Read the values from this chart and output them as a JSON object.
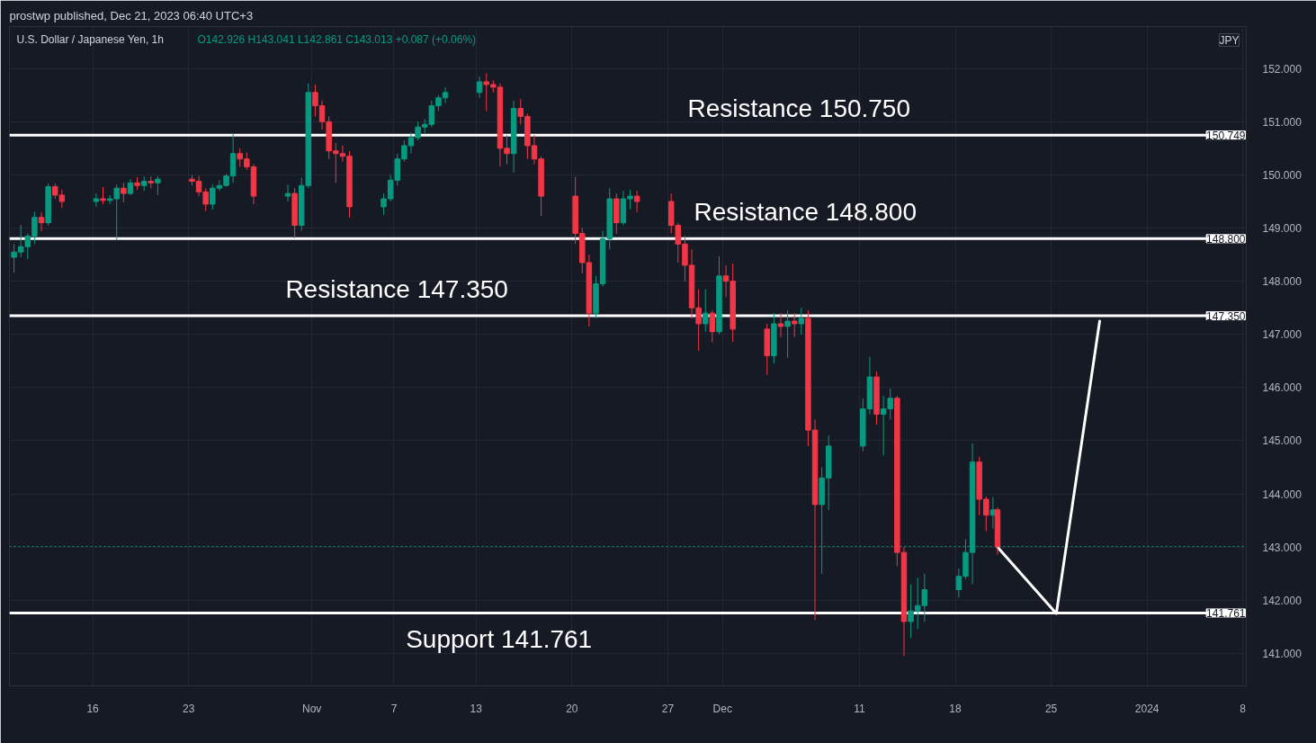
{
  "chart_data": {
    "type": "candlestick",
    "title": "prostwp published, Dec 21, 2023 06:40 UTC+3",
    "subtitle": "U.S. Dollar / Japanese Yen, 1h",
    "x": [
      "2023-10-10T06:00",
      "2023-10-10T18:00",
      "2023-10-11T06:00",
      "2023-10-11T18:00",
      "2023-10-12T06:00",
      "2023-10-12T18:00",
      "2023-10-13T06:00",
      "2023-10-13T18:00",
      "2023-10-16T06:00",
      "2023-10-16T18:00",
      "2023-10-17T06:00",
      "2023-10-17T18:00",
      "2023-10-18T06:00",
      "2023-10-18T18:00",
      "2023-10-19T06:00",
      "2023-10-19T18:00",
      "2023-10-20T06:00",
      "2023-10-20T18:00",
      "2023-10-23T06:00",
      "2023-10-23T18:00",
      "2023-10-24T06:00",
      "2023-10-24T18:00",
      "2023-10-25T06:00",
      "2023-10-25T18:00",
      "2023-10-26T06:00",
      "2023-10-26T18:00",
      "2023-10-27T06:00",
      "2023-10-27T18:00",
      "2023-10-30T06:00",
      "2023-10-30T18:00",
      "2023-10-31T06:00",
      "2023-10-31T18:00",
      "2023-11-01T06:00",
      "2023-11-01T18:00",
      "2023-11-02T06:00",
      "2023-11-02T18:00",
      "2023-11-03T06:00",
      "2023-11-03T18:00",
      "2023-11-06T06:00",
      "2023-11-06T18:00",
      "2023-11-07T06:00",
      "2023-11-07T18:00",
      "2023-11-08T06:00",
      "2023-11-08T18:00",
      "2023-11-09T06:00",
      "2023-11-09T18:00",
      "2023-11-10T06:00",
      "2023-11-10T18:00",
      "2023-11-13T06:00",
      "2023-11-13T18:00",
      "2023-11-14T06:00",
      "2023-11-14T18:00",
      "2023-11-15T06:00",
      "2023-11-15T18:00",
      "2023-11-16T06:00",
      "2023-11-16T18:00",
      "2023-11-17T06:00",
      "2023-11-17T18:00",
      "2023-11-20T06:00",
      "2023-11-20T18:00",
      "2023-11-21T06:00",
      "2023-11-21T18:00",
      "2023-11-22T06:00",
      "2023-11-22T18:00",
      "2023-11-23T06:00",
      "2023-11-23T18:00",
      "2023-11-24T06:00",
      "2023-11-24T18:00",
      "2023-11-27T06:00",
      "2023-11-27T18:00",
      "2023-11-28T06:00",
      "2023-11-28T18:00",
      "2023-11-29T06:00",
      "2023-11-29T18:00",
      "2023-11-30T06:00",
      "2023-11-30T18:00",
      "2023-12-01T06:00",
      "2023-12-01T18:00",
      "2023-12-04T06:00",
      "2023-12-04T18:00",
      "2023-12-05T06:00",
      "2023-12-05T18:00",
      "2023-12-06T06:00",
      "2023-12-06T18:00",
      "2023-12-07T06:00",
      "2023-12-07T18:00",
      "2023-12-08T06:00",
      "2023-12-08T18:00",
      "2023-12-11T06:00",
      "2023-12-11T18:00",
      "2023-12-12T06:00",
      "2023-12-12T18:00",
      "2023-12-13T06:00",
      "2023-12-13T18:00",
      "2023-12-14T06:00",
      "2023-12-14T18:00",
      "2023-12-15T06:00",
      "2023-12-15T18:00",
      "2023-12-18T06:00",
      "2023-12-18T18:00",
      "2023-12-19T06:00",
      "2023-12-19T18:00",
      "2023-12-20T06:00",
      "2023-12-20T18:00",
      "2023-12-21T02:00"
    ],
    "ohlc": [
      [
        148.45,
        148.7,
        148.16,
        148.55
      ],
      [
        148.55,
        149.06,
        148.45,
        148.65
      ],
      [
        148.65,
        148.9,
        148.42,
        148.85
      ],
      [
        148.85,
        149.31,
        148.7,
        149.2
      ],
      [
        149.2,
        149.3,
        148.94,
        149.1
      ],
      [
        149.1,
        149.84,
        149.05,
        149.78
      ],
      [
        149.78,
        149.84,
        149.55,
        149.62
      ],
      [
        149.62,
        149.72,
        149.38,
        149.5
      ],
      [
        149.5,
        149.65,
        149.4,
        149.55
      ],
      [
        149.55,
        149.77,
        149.45,
        149.52
      ],
      [
        149.52,
        149.62,
        149.45,
        149.55
      ],
      [
        149.55,
        149.82,
        148.77,
        149.75
      ],
      [
        149.75,
        149.85,
        149.48,
        149.65
      ],
      [
        149.65,
        149.92,
        149.62,
        149.85
      ],
      [
        149.85,
        149.96,
        149.72,
        149.8
      ],
      [
        149.8,
        149.97,
        149.7,
        149.88
      ],
      [
        149.88,
        149.97,
        149.75,
        149.85
      ],
      [
        149.85,
        149.98,
        149.62,
        149.92
      ],
      [
        149.92,
        150.0,
        149.8,
        149.88
      ],
      [
        149.88,
        149.98,
        149.6,
        149.68
      ],
      [
        149.68,
        149.75,
        149.32,
        149.45
      ],
      [
        149.45,
        149.82,
        149.35,
        149.75
      ],
      [
        149.75,
        149.9,
        149.7,
        149.8
      ],
      [
        149.8,
        150.02,
        149.78,
        149.98
      ],
      [
        149.98,
        150.77,
        149.85,
        150.4
      ],
      [
        150.4,
        150.5,
        150.15,
        150.3
      ],
      [
        150.3,
        150.42,
        150.1,
        150.15
      ],
      [
        150.15,
        150.2,
        149.45,
        149.6
      ],
      [
        149.6,
        149.82,
        149.5,
        149.65
      ],
      [
        149.65,
        149.75,
        148.81,
        149.05
      ],
      [
        149.05,
        149.95,
        148.95,
        149.8
      ],
      [
        149.8,
        151.72,
        149.75,
        151.55
      ],
      [
        151.55,
        151.7,
        151.1,
        151.3
      ],
      [
        151.3,
        151.4,
        150.85,
        151.0
      ],
      [
        151.0,
        151.1,
        150.3,
        150.45
      ],
      [
        150.45,
        150.6,
        149.85,
        150.4
      ],
      [
        150.4,
        150.55,
        150.25,
        150.35
      ],
      [
        150.35,
        150.45,
        149.2,
        149.4
      ],
      [
        149.4,
        149.65,
        149.25,
        149.55
      ],
      [
        149.55,
        150.0,
        149.5,
        149.9
      ],
      [
        149.9,
        150.4,
        149.8,
        150.3
      ],
      [
        150.3,
        150.65,
        150.25,
        150.55
      ],
      [
        150.55,
        150.8,
        150.4,
        150.7
      ],
      [
        150.7,
        151.0,
        150.65,
        150.9
      ],
      [
        150.9,
        151.05,
        150.78,
        150.95
      ],
      [
        150.95,
        151.4,
        150.9,
        151.3
      ],
      [
        151.3,
        151.5,
        151.2,
        151.45
      ],
      [
        151.45,
        151.65,
        151.35,
        151.55
      ],
      [
        151.55,
        151.85,
        151.45,
        151.75
      ],
      [
        151.75,
        151.91,
        151.2,
        151.7
      ],
      [
        151.7,
        151.78,
        151.55,
        151.65
      ],
      [
        151.65,
        151.72,
        150.16,
        150.5
      ],
      [
        150.5,
        150.75,
        150.2,
        150.4
      ],
      [
        150.4,
        151.4,
        150.04,
        151.25
      ],
      [
        151.25,
        151.43,
        150.95,
        151.1
      ],
      [
        151.1,
        151.15,
        150.3,
        150.55
      ],
      [
        150.55,
        150.75,
        150.2,
        150.3
      ],
      [
        150.3,
        150.35,
        149.23,
        149.6
      ],
      [
        149.6,
        149.96,
        148.7,
        148.9
      ],
      [
        148.9,
        149.0,
        148.15,
        148.35
      ],
      [
        148.35,
        148.5,
        147.15,
        147.4
      ],
      [
        147.4,
        148.1,
        147.3,
        147.95
      ],
      [
        147.95,
        148.95,
        147.9,
        148.8
      ],
      [
        148.8,
        149.75,
        148.6,
        149.55
      ],
      [
        149.55,
        149.65,
        148.89,
        149.1
      ],
      [
        149.1,
        149.7,
        149.05,
        149.55
      ],
      [
        149.55,
        149.72,
        149.35,
        149.6
      ],
      [
        149.6,
        149.7,
        149.3,
        149.5
      ],
      [
        149.5,
        149.65,
        148.9,
        149.05
      ],
      [
        149.05,
        149.1,
        148.35,
        148.7
      ],
      [
        148.7,
        148.85,
        148.0,
        148.3
      ],
      [
        148.3,
        148.6,
        147.3,
        147.5
      ],
      [
        147.5,
        147.85,
        146.69,
        147.2
      ],
      [
        147.2,
        147.85,
        147.05,
        147.4
      ],
      [
        147.4,
        147.45,
        146.85,
        147.05
      ],
      [
        147.05,
        148.47,
        147.0,
        148.1
      ],
      [
        148.1,
        148.3,
        147.7,
        148.0
      ],
      [
        148.0,
        148.33,
        146.86,
        147.1
      ],
      [
        147.1,
        147.2,
        146.24,
        146.6
      ],
      [
        146.6,
        147.4,
        146.45,
        147.2
      ],
      [
        147.2,
        147.4,
        146.95,
        147.15
      ],
      [
        147.15,
        147.45,
        146.56,
        147.25
      ],
      [
        147.25,
        147.4,
        146.95,
        147.2
      ],
      [
        147.2,
        147.5,
        147.0,
        147.3
      ],
      [
        147.3,
        147.45,
        144.9,
        145.2
      ],
      [
        145.2,
        145.4,
        141.63,
        143.8
      ],
      [
        143.8,
        144.5,
        142.5,
        144.3
      ],
      [
        144.3,
        145.1,
        143.7,
        144.9
      ],
      [
        144.9,
        145.8,
        144.8,
        145.6
      ],
      [
        145.6,
        146.58,
        145.5,
        146.2
      ],
      [
        146.2,
        146.3,
        145.3,
        145.5
      ],
      [
        145.5,
        145.85,
        144.72,
        145.6
      ],
      [
        145.6,
        145.98,
        145.4,
        145.8
      ],
      [
        145.8,
        145.85,
        142.64,
        142.9
      ],
      [
        142.9,
        143.0,
        140.95,
        141.6
      ],
      [
        141.6,
        142.3,
        141.29,
        141.8
      ],
      [
        141.8,
        142.42,
        141.46,
        141.9
      ],
      [
        141.9,
        142.5,
        141.6,
        142.2
      ],
      [
        142.2,
        142.6,
        142.05,
        142.45
      ],
      [
        142.45,
        143.15,
        142.4,
        142.9
      ],
      [
        142.9,
        144.95,
        142.3,
        144.6
      ],
      [
        144.6,
        144.7,
        143.6,
        143.9
      ],
      [
        143.9,
        143.95,
        143.3,
        143.6
      ],
      [
        143.6,
        143.94,
        143.35,
        143.7
      ],
      [
        143.7,
        143.75,
        142.86,
        143.01
      ]
    ],
    "colors": [
      "#089981",
      "#089981",
      "#089981",
      "#089981",
      "#f23645",
      "#089981",
      "#f23645",
      "#f23645",
      "#089981",
      "#f23645",
      "#089981",
      "#089981",
      "#f23645",
      "#089981",
      "#f23645",
      "#089981",
      "#f23645",
      "#089981",
      "#f23645",
      "#f23645",
      "#f23645",
      "#089981",
      "#089981",
      "#089981",
      "#089981",
      "#f23645",
      "#f23645",
      "#f23645",
      "#089981",
      "#f23645",
      "#089981",
      "#089981",
      "#f23645",
      "#f23645",
      "#f23645",
      "#f23645",
      "#f23645",
      "#f23645",
      "#089981",
      "#089981",
      "#089981",
      "#089981",
      "#089981",
      "#089981",
      "#089981",
      "#089981",
      "#089981",
      "#089981",
      "#089981",
      "#f23645",
      "#f23645",
      "#f23645",
      "#f23645",
      "#089981",
      "#f23645",
      "#f23645",
      "#f23645",
      "#f23645",
      "#f23645",
      "#f23645",
      "#f23645",
      "#089981",
      "#089981",
      "#089981",
      "#f23645",
      "#089981",
      "#089981",
      "#f23645",
      "#f23645",
      "#f23645",
      "#f23645",
      "#f23645",
      "#f23645",
      "#089981",
      "#f23645",
      "#089981",
      "#f23645",
      "#f23645",
      "#f23645",
      "#089981",
      "#f23645",
      "#089981",
      "#f23645",
      "#089981",
      "#f23645",
      "#f23645",
      "#089981",
      "#089981",
      "#089981",
      "#089981",
      "#f23645",
      "#089981",
      "#089981",
      "#f23645",
      "#f23645",
      "#089981",
      "#089981",
      "#089981",
      "#089981",
      "#089981",
      "#089981",
      "#f23645",
      "#f23645",
      "#089981",
      "#f23645"
    ],
    "series": [
      {
        "type": "line",
        "color": "#ffffff",
        "x": [
          "2023-12-21T02:00",
          "2023-12-25T09:00",
          "2023-12-28T13:00"
        ],
        "values": [
          143.0,
          141.75,
          147.25
        ]
      }
    ],
    "xlim": [
      "2023-10-09T22:00",
      "2024-01-08T06:00"
    ],
    "xticks": [
      {
        "value": "2023-10-16",
        "label": "16"
      },
      {
        "value": "2023-10-23",
        "label": "23"
      },
      {
        "value": "2023-11-01",
        "label": "Nov"
      },
      {
        "value": "2023-11-07",
        "label": "7"
      },
      {
        "value": "2023-11-13",
        "label": "13"
      },
      {
        "value": "2023-11-20",
        "label": "20"
      },
      {
        "value": "2023-11-27",
        "label": "27"
      },
      {
        "value": "2023-12-01",
        "label": "Dec"
      },
      {
        "value": "2023-12-11",
        "label": "11"
      },
      {
        "value": "2023-12-18",
        "label": "18"
      },
      {
        "value": "2023-12-25",
        "label": "25"
      },
      {
        "value": "2024-01-01",
        "label": "2024"
      },
      {
        "value": "2024-01-08",
        "label": "8"
      }
    ],
    "ylim": [
      140.39,
      152.79
    ],
    "yticks": [
      {
        "value": 141,
        "label": "141.000"
      },
      {
        "value": 142,
        "label": "142.000"
      },
      {
        "value": 143,
        "label": "143.000"
      },
      {
        "value": 144,
        "label": "144.000"
      },
      {
        "value": 145,
        "label": "145.000"
      },
      {
        "value": 146,
        "label": "146.000"
      },
      {
        "value": 147,
        "label": "147.000"
      },
      {
        "value": 148,
        "label": "148.000"
      },
      {
        "value": 149,
        "label": "149.000"
      },
      {
        "value": 150,
        "label": "150.000"
      },
      {
        "value": 151,
        "label": "151.000"
      },
      {
        "value": 152,
        "label": "152.000"
      }
    ],
    "grid": true,
    "ref_lines": [
      {
        "axis": "y",
        "value": 150.749,
        "label": "150.749",
        "color": "#ffffff"
      },
      {
        "axis": "y",
        "value": 148.8,
        "label": "148.800",
        "color": "#ffffff"
      },
      {
        "axis": "y",
        "value": 147.35,
        "label": "147.350",
        "color": "#ffffff"
      },
      {
        "axis": "y",
        "value": 141.761,
        "label": "141.761",
        "color": "#ffffff"
      },
      {
        "axis": "y",
        "value": 143.013,
        "color": "#089981",
        "line_style": "dotted"
      }
    ],
    "annotations": [
      "O142.926 H143.041 L142.861 C143.013 +0.087 (+0.06%)",
      "JPY",
      {
        "text": "Resistance 150.750",
        "x": "2023-12-06T14:00",
        "y": 150.749
      },
      {
        "text": "Resistance 148.800",
        "x": "2023-12-07T01:00",
        "y": 148.8
      },
      {
        "text": "Resistance 147.350",
        "x": "2023-11-07T05:00",
        "y": 147.35
      },
      {
        "text": "Support 141.761",
        "x": "2023-11-14T16:00",
        "y": 141.761
      }
    ]
  }
}
